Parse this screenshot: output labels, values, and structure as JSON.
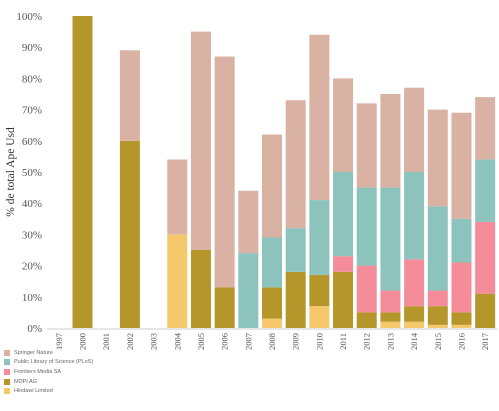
{
  "chart_data": {
    "type": "bar",
    "stacked": true,
    "title": "",
    "xlabel": "",
    "ylabel": "% de total Ape Usd",
    "ylim": [
      0,
      100
    ],
    "yticks": [
      "0%",
      "10%",
      "20%",
      "30%",
      "40%",
      "50%",
      "60%",
      "70%",
      "80%",
      "90%",
      "100%"
    ],
    "grid": false,
    "legend_position": "bottom-left",
    "categories": [
      "1997",
      "2000",
      "2001",
      "2002",
      "2003",
      "2004",
      "2005",
      "2006",
      "2007",
      "2008",
      "2009",
      "2010",
      "2011",
      "2012",
      "2013",
      "2014",
      "2015",
      "2016",
      "2017"
    ],
    "series": [
      {
        "name": "Hindawi Limited",
        "color": "#f5c96b",
        "values": [
          0,
          0,
          0,
          0,
          0,
          30,
          0,
          0,
          0,
          3,
          0,
          7,
          0,
          0,
          2,
          2,
          1,
          1,
          0
        ]
      },
      {
        "name": "MDPI AG",
        "color": "#b5962a",
        "values": [
          0,
          100,
          0,
          60,
          0,
          0,
          25,
          13,
          0,
          10,
          18,
          10,
          18,
          5,
          3,
          5,
          6,
          4,
          11
        ]
      },
      {
        "name": "Frontiers Media SA",
        "color": "#f58c9a",
        "values": [
          0,
          0,
          0,
          0,
          0,
          0,
          0,
          0,
          0,
          0,
          0,
          0,
          5,
          15,
          7,
          15,
          5,
          16,
          23
        ]
      },
      {
        "name": "Public Library of Science (PLoS)",
        "color": "#8cc4bd",
        "values": [
          0,
          0,
          0,
          0,
          0,
          0,
          0,
          0,
          24,
          16,
          14,
          24,
          27,
          25,
          33,
          28,
          27,
          14,
          20
        ]
      },
      {
        "name": "Springer Nature",
        "color": "#d9b2a3",
        "values": [
          0,
          0,
          0,
          29,
          0,
          24,
          70,
          74,
          20,
          33,
          41,
          53,
          30,
          27,
          30,
          27,
          31,
          34,
          20
        ]
      }
    ]
  }
}
